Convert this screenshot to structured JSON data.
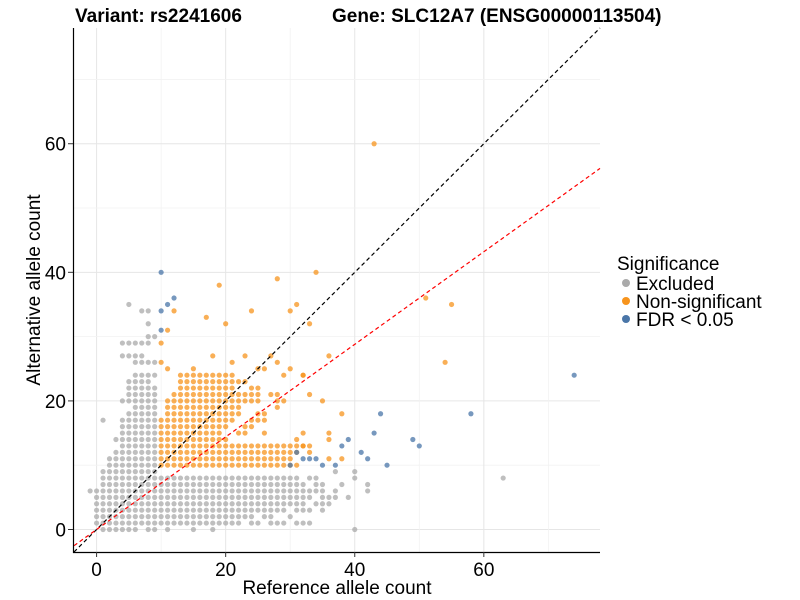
{
  "chart_data": {
    "type": "scatter",
    "title_left": "Variant: rs2241606",
    "title_right": "Gene: SLC12A7 (ENSG00000113504)",
    "xlabel": "Reference allele count",
    "ylabel": "Alternative allele count",
    "xlim": [
      -3.5,
      78
    ],
    "ylim": [
      -3.5,
      78
    ],
    "x_ticks": [
      0,
      20,
      40,
      60
    ],
    "y_ticks": [
      0,
      20,
      40,
      60
    ],
    "grid": true,
    "legend": {
      "title": "Significance",
      "position": "right",
      "entries": [
        {
          "label": "Excluded",
          "color": "#aaaaaa"
        },
        {
          "label": "Non-significant",
          "color": "#f7941d"
        },
        {
          "label": "FDR < 0.05",
          "color": "#4a76a8"
        }
      ]
    },
    "reference_lines": [
      {
        "name": "identity",
        "slope": 1,
        "intercept": 0,
        "color": "#000000",
        "style": "dashed"
      },
      {
        "name": "fitted",
        "slope": 0.72,
        "intercept": 0,
        "color": "#ff0000",
        "style": "dashed"
      }
    ],
    "series": [
      {
        "name": "Excluded",
        "color": "#aaaaaa",
        "row_ranges": [
          {
            "y": 0,
            "x": [
              [
                1,
                6
              ],
              [
                8,
                9
              ],
              [
                11,
                11
              ],
              [
                15,
                15
              ],
              [
                18,
                18
              ]
            ]
          },
          {
            "y": 1,
            "x": [
              [
                0,
                22
              ],
              [
                24,
                25
              ],
              [
                27,
                29
              ],
              [
                31,
                33
              ]
            ]
          },
          {
            "y": 2,
            "x": [
              [
                0,
                24
              ],
              [
                26,
                27
              ],
              [
                30,
                30
              ]
            ]
          },
          {
            "y": 3,
            "x": [
              [
                0,
                29
              ],
              [
                31,
                33
              ],
              [
                35,
                35
              ]
            ]
          },
          {
            "y": 4,
            "x": [
              [
                0,
                32
              ],
              [
                34,
                36
              ]
            ]
          },
          {
            "y": 5,
            "x": [
              [
                0,
                33
              ],
              [
                35,
                37
              ]
            ]
          },
          {
            "y": 6,
            "x": [
              [
                -1,
                30
              ],
              [
                31,
                34
              ],
              [
                37,
                37
              ]
            ]
          },
          {
            "y": 7,
            "x": [
              [
                1,
                32
              ],
              [
                34,
                35
              ]
            ]
          },
          {
            "y": 8,
            "x": [
              [
                1,
                31
              ],
              [
                33,
                34
              ],
              [
                40,
                40
              ]
            ]
          },
          {
            "y": 9,
            "x": [
              [
                1,
                9
              ]
            ]
          },
          {
            "y": 10,
            "x": [
              [
                2,
                9
              ]
            ]
          },
          {
            "y": 11,
            "x": [
              [
                2,
                9
              ]
            ]
          },
          {
            "y": 12,
            "x": [
              [
                3,
                9
              ]
            ]
          },
          {
            "y": 13,
            "x": [
              [
                4,
                9
              ]
            ]
          },
          {
            "y": 14,
            "x": [
              [
                3,
                9
              ]
            ]
          },
          {
            "y": 15,
            "x": [
              [
                4,
                9
              ]
            ]
          },
          {
            "y": 16,
            "x": [
              [
                4,
                9
              ]
            ]
          },
          {
            "y": 17,
            "x": [
              [
                1,
                1
              ],
              [
                4,
                9
              ]
            ]
          },
          {
            "y": 18,
            "x": [
              [
                5,
                9
              ]
            ]
          },
          {
            "y": 19,
            "x": [
              [
                6,
                9
              ]
            ]
          },
          {
            "y": 20,
            "x": [
              [
                4,
                9
              ]
            ]
          },
          {
            "y": 21,
            "x": [
              [
                5,
                9
              ]
            ]
          },
          {
            "y": 22,
            "x": [
              [
                5,
                9
              ]
            ]
          },
          {
            "y": 23,
            "x": [
              [
                5,
                8
              ]
            ]
          },
          {
            "y": 24,
            "x": [
              [
                6,
                9
              ]
            ]
          },
          {
            "y": 26,
            "x": [
              [
                6,
                9
              ]
            ]
          },
          {
            "y": 27,
            "x": [
              [
                4,
                7
              ]
            ]
          },
          {
            "y": 29,
            "x": [
              [
                4,
                8
              ]
            ]
          },
          {
            "y": 30,
            "x": [
              [
                8,
                9
              ]
            ]
          },
          {
            "y": 32,
            "x": [
              [
                8,
                8
              ]
            ]
          },
          {
            "y": 34,
            "x": [
              [
                7,
                8
              ]
            ]
          },
          {
            "y": 35,
            "x": [
              [
                5,
                5
              ]
            ]
          }
        ],
        "points": [
          [
            40,
            0
          ],
          [
            63,
            8
          ],
          [
            42,
            6
          ],
          [
            38,
            7
          ],
          [
            39,
            5
          ],
          [
            35,
            6
          ],
          [
            37,
            9
          ],
          [
            40,
            9
          ],
          [
            42,
            7
          ]
        ]
      },
      {
        "name": "Non-significant",
        "color": "#f7941d",
        "row_ranges": [
          {
            "y": 10,
            "x": [
              [
                10,
                31
              ]
            ]
          },
          {
            "y": 11,
            "x": [
              [
                10,
                30
              ]
            ]
          },
          {
            "y": 12,
            "x": [
              [
                10,
                31
              ]
            ]
          },
          {
            "y": 13,
            "x": [
              [
                10,
                33
              ]
            ]
          },
          {
            "y": 14,
            "x": [
              [
                10,
                20
              ]
            ]
          },
          {
            "y": 15,
            "x": [
              [
                10,
                19
              ],
              [
                22,
                23
              ],
              [
                26,
                26
              ]
            ]
          },
          {
            "y": 16,
            "x": [
              [
                10,
                20
              ],
              [
                23,
                24
              ]
            ]
          },
          {
            "y": 17,
            "x": [
              [
                10,
                21
              ],
              [
                24,
                26
              ]
            ]
          },
          {
            "y": 18,
            "x": [
              [
                11,
                22
              ],
              [
                25,
                26
              ]
            ]
          },
          {
            "y": 19,
            "x": [
              [
                11,
                22
              ],
              [
                28,
                28
              ]
            ]
          },
          {
            "y": 20,
            "x": [
              [
                11,
                25
              ],
              [
                28,
                29
              ]
            ]
          },
          {
            "y": 21,
            "x": [
              [
                12,
                25
              ],
              [
                27,
                28
              ]
            ]
          },
          {
            "y": 22,
            "x": [
              [
                13,
                21
              ],
              [
                24,
                25
              ]
            ]
          },
          {
            "y": 23,
            "x": [
              [
                14,
                23
              ]
            ]
          },
          {
            "y": 24,
            "x": [
              [
                13,
                21
              ]
            ]
          }
        ],
        "points": [
          [
            43,
            60
          ],
          [
            28,
            39
          ],
          [
            34,
            40
          ],
          [
            19,
            38
          ],
          [
            12,
            34
          ],
          [
            17,
            33
          ],
          [
            20,
            32
          ],
          [
            24,
            34
          ],
          [
            30,
            34
          ],
          [
            31,
            35
          ],
          [
            33,
            32
          ],
          [
            11,
            31
          ],
          [
            27,
            27
          ],
          [
            36,
            27
          ],
          [
            10,
            29
          ],
          [
            10,
            26
          ],
          [
            11,
            25
          ],
          [
            15,
            25
          ],
          [
            25,
            25
          ],
          [
            26,
            25
          ],
          [
            28,
            26
          ],
          [
            30,
            25
          ],
          [
            32,
            24
          ],
          [
            13,
            23
          ],
          [
            18,
            27
          ],
          [
            21,
            26
          ],
          [
            23,
            27
          ],
          [
            29,
            24
          ],
          [
            32,
            24
          ],
          [
            38,
            18
          ],
          [
            36,
            15
          ],
          [
            31,
            14
          ],
          [
            32,
            13
          ],
          [
            33,
            12
          ],
          [
            51,
            36
          ],
          [
            55,
            35
          ],
          [
            54,
            26
          ],
          [
            35,
            20
          ],
          [
            33,
            21
          ],
          [
            36,
            11
          ],
          [
            38,
            11
          ],
          [
            32,
            15
          ],
          [
            36,
            14
          ]
        ]
      },
      {
        "name": "FDR < 0.05",
        "color": "#4a76a8",
        "points": [
          [
            10,
            40
          ],
          [
            11,
            35
          ],
          [
            12,
            36
          ],
          [
            10,
            34
          ],
          [
            10,
            31
          ],
          [
            74,
            24
          ],
          [
            44,
            18
          ],
          [
            58,
            18
          ],
          [
            49,
            14
          ],
          [
            50,
            13
          ],
          [
            45,
            10
          ],
          [
            43,
            15
          ],
          [
            39,
            14
          ],
          [
            38,
            13
          ],
          [
            41,
            12
          ],
          [
            42,
            11
          ],
          [
            31,
            12
          ],
          [
            32,
            11
          ],
          [
            33,
            11
          ],
          [
            34,
            11
          ],
          [
            35,
            10
          ],
          [
            37,
            10
          ],
          [
            30,
            10
          ]
        ]
      }
    ]
  }
}
